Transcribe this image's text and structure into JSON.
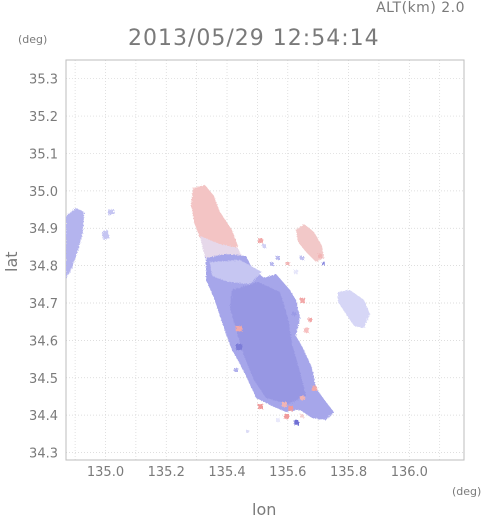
{
  "header": {
    "altitude_label": "ALT(km) 2.0",
    "datetime": "2013/05/29 12:54:14"
  },
  "axes": {
    "y_unit": "(deg)",
    "x_unit": "(deg)",
    "y_label": "lat",
    "x_label": "lon",
    "x_ticks": [
      "135.0",
      "135.2",
      "135.4",
      "135.6",
      "135.8",
      "136.0"
    ],
    "y_ticks": [
      "34.3",
      "34.4",
      "34.5",
      "34.6",
      "34.7",
      "34.8",
      "34.9",
      "35.0",
      "35.1",
      "35.2",
      "35.3"
    ],
    "x_range": [
      134.87,
      136.18
    ],
    "y_range": [
      34.28,
      35.35
    ],
    "grid": true
  },
  "colors": {
    "grid": "#d4d4d4",
    "frame": "#bdbdbd",
    "text": "#7a7a7a",
    "approaching": "#9b9be8",
    "receding": "#f0a0a0"
  }
}
